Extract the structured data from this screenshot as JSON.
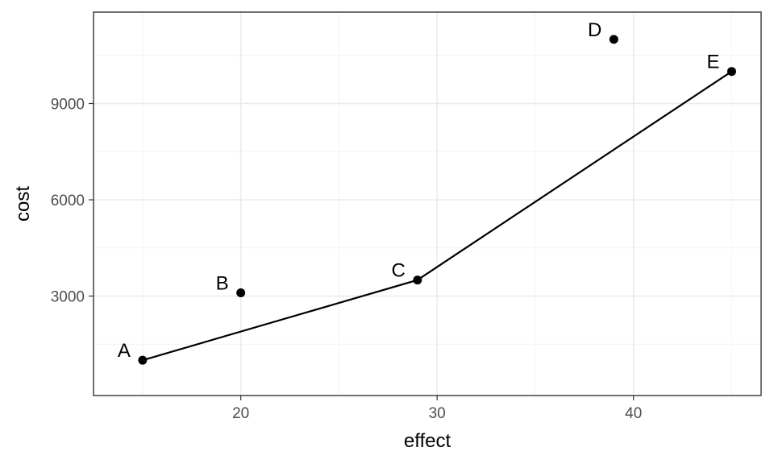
{
  "chart_data": {
    "type": "scatter",
    "xlabel": "effect",
    "ylabel": "cost",
    "xlim": [
      12.5,
      46.5
    ],
    "ylim": [
      -100,
      11850
    ],
    "x_ticks": [
      20,
      30,
      40
    ],
    "y_ticks": [
      3000,
      6000,
      9000
    ],
    "x_minor_ticks": [
      15,
      25,
      35,
      45
    ],
    "y_minor_ticks": [
      1500,
      4500,
      7500,
      10500
    ],
    "grid": true,
    "points": [
      {
        "label": "A",
        "x": 15,
        "y": 1000
      },
      {
        "label": "B",
        "x": 20,
        "y": 3100
      },
      {
        "label": "C",
        "x": 29,
        "y": 3500
      },
      {
        "label": "D",
        "x": 39,
        "y": 11000
      },
      {
        "label": "E",
        "x": 45,
        "y": 10000
      }
    ],
    "frontier": [
      "A",
      "C",
      "E"
    ],
    "colors": {
      "point": "#000000",
      "line": "#000000",
      "grid": "#ebebeb",
      "border": "#333333"
    }
  }
}
